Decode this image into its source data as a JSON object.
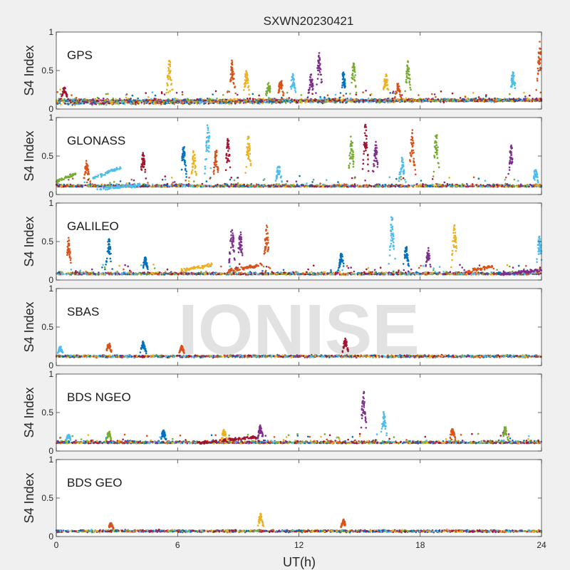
{
  "chart_data": {
    "type": "scatter",
    "title": "SXWN20230421",
    "xlabel": "UT(h)",
    "ylabel": "S4 Index",
    "xlim": [
      0,
      24
    ],
    "ylim": [
      0,
      1
    ],
    "xticks": [
      0,
      6,
      12,
      18,
      24
    ],
    "yticks": [
      0,
      0.5,
      1
    ],
    "ytick_labels": [
      "0",
      "0.5",
      "1"
    ],
    "watermark": "IONISE",
    "series_colors": [
      "#0072BD",
      "#D95319",
      "#EDB120",
      "#7E2F8E",
      "#77AC30",
      "#4DBEEE",
      "#A2142F"
    ],
    "panels": [
      {
        "label": "GPS",
        "baseline": 0.1,
        "bands": [
          {
            "x": [
              0,
              24
            ],
            "s4": 0.12
          }
        ],
        "peaks": [
          {
            "x": 0.4,
            "s4": 0.3,
            "c": 6
          },
          {
            "x": 5.6,
            "s4": 0.66,
            "c": 2
          },
          {
            "x": 8.7,
            "s4": 0.64,
            "c": 1
          },
          {
            "x": 9.4,
            "s4": 0.52,
            "c": 2
          },
          {
            "x": 10.5,
            "s4": 0.35,
            "c": 4
          },
          {
            "x": 11.1,
            "s4": 0.4,
            "c": 1
          },
          {
            "x": 11.7,
            "s4": 0.47,
            "c": 5
          },
          {
            "x": 12.6,
            "s4": 0.46,
            "c": 3
          },
          {
            "x": 13.0,
            "s4": 0.76,
            "c": 3
          },
          {
            "x": 14.2,
            "s4": 0.49,
            "c": 0
          },
          {
            "x": 14.7,
            "s4": 0.62,
            "c": 4
          },
          {
            "x": 16.3,
            "s4": 0.48,
            "c": 2
          },
          {
            "x": 16.9,
            "s4": 0.35,
            "c": 1
          },
          {
            "x": 17.4,
            "s4": 0.63,
            "c": 4
          },
          {
            "x": 22.6,
            "s4": 0.52,
            "c": 5
          },
          {
            "x": 23.9,
            "s4": 0.88,
            "c": 1
          }
        ]
      },
      {
        "label": "GLONASS",
        "baseline": 0.1,
        "bands": [
          {
            "x": [
              0,
              1.0
            ],
            "s4": 0.28,
            "c": 4
          },
          {
            "x": [
              1.8,
              3.2
            ],
            "s4": 0.35,
            "c": 5
          },
          {
            "x": [
              2.0,
              4.2
            ],
            "s4": 0.12,
            "c": 5
          }
        ],
        "peaks": [
          {
            "x": 1.5,
            "s4": 0.45,
            "c": 1
          },
          {
            "x": 4.3,
            "s4": 0.55,
            "c": 6
          },
          {
            "x": 6.3,
            "s4": 0.66,
            "c": 0
          },
          {
            "x": 6.8,
            "s4": 0.58,
            "c": 2
          },
          {
            "x": 7.5,
            "s4": 0.95,
            "c": 5
          },
          {
            "x": 7.9,
            "s4": 0.6,
            "c": 1
          },
          {
            "x": 8.5,
            "s4": 0.75,
            "c": 6
          },
          {
            "x": 9.5,
            "s4": 0.77,
            "c": 2
          },
          {
            "x": 11.0,
            "s4": 0.4,
            "c": 5
          },
          {
            "x": 14.6,
            "s4": 0.8,
            "c": 4
          },
          {
            "x": 15.3,
            "s4": 0.95,
            "c": 6
          },
          {
            "x": 15.8,
            "s4": 0.73,
            "c": 3
          },
          {
            "x": 17.1,
            "s4": 0.5,
            "c": 5
          },
          {
            "x": 17.6,
            "s4": 0.87,
            "c": 1
          },
          {
            "x": 18.8,
            "s4": 0.87,
            "c": 4
          },
          {
            "x": 22.5,
            "s4": 0.66,
            "c": 3
          },
          {
            "x": 23.7,
            "s4": 0.33,
            "c": 5
          }
        ]
      },
      {
        "label": "GALILEO",
        "baseline": 0.07,
        "bands": [
          {
            "x": [
              6.1,
              7.7
            ],
            "s4": 0.2,
            "c": 2
          },
          {
            "x": [
              8.5,
              10.2
            ],
            "s4": 0.2,
            "c": 1
          },
          {
            "x": [
              20.3,
              21.6
            ],
            "s4": 0.18,
            "c": 1
          },
          {
            "x": [
              22.0,
              24.0
            ],
            "s4": 0.13,
            "c": 3
          }
        ],
        "peaks": [
          {
            "x": 0.6,
            "s4": 0.55,
            "c": 1
          },
          {
            "x": 2.6,
            "s4": 0.55,
            "c": 0
          },
          {
            "x": 4.4,
            "s4": 0.3,
            "c": 0
          },
          {
            "x": 8.7,
            "s4": 0.74,
            "c": 3
          },
          {
            "x": 9.1,
            "s4": 0.65,
            "c": 3
          },
          {
            "x": 10.4,
            "s4": 0.72,
            "c": 1
          },
          {
            "x": 14.1,
            "s4": 0.35,
            "c": 0
          },
          {
            "x": 16.6,
            "s4": 0.86,
            "c": 5
          },
          {
            "x": 17.3,
            "s4": 0.45,
            "c": 0
          },
          {
            "x": 18.4,
            "s4": 0.42,
            "c": 3
          },
          {
            "x": 19.7,
            "s4": 0.73,
            "c": 2
          },
          {
            "x": 23.9,
            "s4": 0.6,
            "c": 5
          }
        ]
      },
      {
        "label": "SBAS",
        "baseline": 0.12,
        "bands": [],
        "peaks": [
          {
            "x": 0.2,
            "s4": 0.25,
            "c": 5
          },
          {
            "x": 2.6,
            "s4": 0.3,
            "c": 1
          },
          {
            "x": 4.3,
            "s4": 0.32,
            "c": 0
          },
          {
            "x": 6.2,
            "s4": 0.26,
            "c": 1
          },
          {
            "x": 14.3,
            "s4": 0.36,
            "c": 6
          }
        ]
      },
      {
        "label": "BDS NGEO",
        "baseline": 0.1,
        "bands": [
          {
            "x": [
              7.0,
              10.0
            ],
            "s4": 0.18,
            "c": 6
          }
        ],
        "peaks": [
          {
            "x": 0.6,
            "s4": 0.22,
            "c": 5
          },
          {
            "x": 2.6,
            "s4": 0.26,
            "c": 4
          },
          {
            "x": 5.3,
            "s4": 0.27,
            "c": 0
          },
          {
            "x": 8.3,
            "s4": 0.28,
            "c": 2
          },
          {
            "x": 10.1,
            "s4": 0.34,
            "c": 3
          },
          {
            "x": 15.2,
            "s4": 0.79,
            "c": 3
          },
          {
            "x": 16.2,
            "s4": 0.53,
            "c": 5
          },
          {
            "x": 19.6,
            "s4": 0.3,
            "c": 1
          },
          {
            "x": 22.2,
            "s4": 0.32,
            "c": 4
          }
        ]
      },
      {
        "label": "BDS GEO",
        "baseline": 0.07,
        "bands": [],
        "peaks": [
          {
            "x": 2.7,
            "s4": 0.18,
            "c": 1
          },
          {
            "x": 10.1,
            "s4": 0.3,
            "c": 2
          },
          {
            "x": 14.2,
            "s4": 0.23,
            "c": 1
          }
        ]
      }
    ]
  }
}
